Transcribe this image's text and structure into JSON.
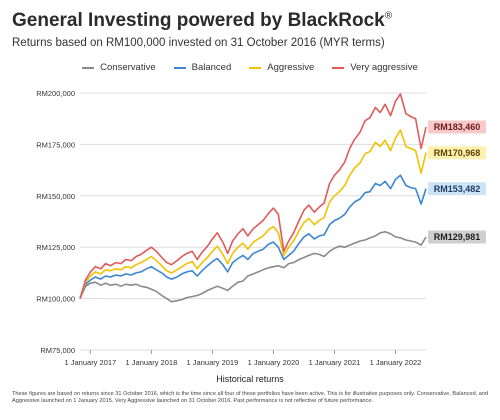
{
  "chart_data": {
    "type": "line",
    "title": "General Investing powered by BlackRock",
    "title_mark": "®",
    "subtitle": "Returns based on RM100,000 invested on 31 October 2016 (MYR terms)",
    "xlabel": "Historical returns",
    "ylim": [
      75000,
      200000
    ],
    "y_ticks": [
      75000,
      100000,
      125000,
      150000,
      175000,
      200000
    ],
    "y_tick_labels": [
      "RM75,000",
      "RM100,000",
      "RM125,000",
      "RM150,000",
      "RM175,000",
      "RM200,000"
    ],
    "x_range": [
      2016.83,
      2022.5
    ],
    "x_ticks": [
      2017,
      2018,
      2019,
      2020,
      2021,
      2022
    ],
    "x_tick_labels": [
      "1 January 2017",
      "1 January 2018",
      "1 January 2019",
      "1 January 2020",
      "1 January 2021",
      "1 January 2022"
    ],
    "grid": "horizontal",
    "legend_position": "top",
    "series": [
      {
        "name": "Conservative",
        "color": "#8a8a8a",
        "end_label": "RM129,981",
        "label_bg": "#cfcfcf",
        "label_text": "#222222",
        "points": [
          [
            2016.83,
            100000
          ],
          [
            2016.92,
            106000
          ],
          [
            2017.0,
            107500
          ],
          [
            2017.08,
            108000
          ],
          [
            2017.17,
            106500
          ],
          [
            2017.25,
            107500
          ],
          [
            2017.33,
            106500
          ],
          [
            2017.42,
            107000
          ],
          [
            2017.5,
            106000
          ],
          [
            2017.58,
            107000
          ],
          [
            2017.67,
            106500
          ],
          [
            2017.75,
            107000
          ],
          [
            2017.83,
            106000
          ],
          [
            2017.92,
            105500
          ],
          [
            2018.0,
            104500
          ],
          [
            2018.08,
            103500
          ],
          [
            2018.17,
            101500
          ],
          [
            2018.25,
            100000
          ],
          [
            2018.33,
            98500
          ],
          [
            2018.42,
            99000
          ],
          [
            2018.5,
            99500
          ],
          [
            2018.58,
            100500
          ],
          [
            2018.67,
            101000
          ],
          [
            2018.75,
            101500
          ],
          [
            2018.83,
            102500
          ],
          [
            2018.92,
            104000
          ],
          [
            2019.0,
            105000
          ],
          [
            2019.08,
            106000
          ],
          [
            2019.17,
            105000
          ],
          [
            2019.25,
            104000
          ],
          [
            2019.33,
            106000
          ],
          [
            2019.42,
            108000
          ],
          [
            2019.5,
            108500
          ],
          [
            2019.58,
            111000
          ],
          [
            2019.67,
            112000
          ],
          [
            2019.75,
            113000
          ],
          [
            2019.83,
            114000
          ],
          [
            2019.92,
            115000
          ],
          [
            2020.0,
            115500
          ],
          [
            2020.08,
            116000
          ],
          [
            2020.17,
            115000
          ],
          [
            2020.25,
            117000
          ],
          [
            2020.33,
            117500
          ],
          [
            2020.42,
            119000
          ],
          [
            2020.5,
            120000
          ],
          [
            2020.58,
            121000
          ],
          [
            2020.67,
            122000
          ],
          [
            2020.75,
            121500
          ],
          [
            2020.83,
            120500
          ],
          [
            2020.92,
            123000
          ],
          [
            2021.0,
            124500
          ],
          [
            2021.08,
            125500
          ],
          [
            2021.17,
            125000
          ],
          [
            2021.25,
            126000
          ],
          [
            2021.33,
            127000
          ],
          [
            2021.42,
            128000
          ],
          [
            2021.5,
            128500
          ],
          [
            2021.58,
            129500
          ],
          [
            2021.67,
            130500
          ],
          [
            2021.75,
            132000
          ],
          [
            2021.83,
            132500
          ],
          [
            2021.92,
            131500
          ],
          [
            2022.0,
            130000
          ],
          [
            2022.08,
            129500
          ],
          [
            2022.17,
            128500
          ],
          [
            2022.25,
            128000
          ],
          [
            2022.33,
            127500
          ],
          [
            2022.42,
            126000
          ],
          [
            2022.5,
            129981
          ]
        ]
      },
      {
        "name": "Balanced",
        "color": "#3a86d1",
        "end_label": "RM153,482",
        "label_bg": "#cfe3f6",
        "label_text": "#1a3d66",
        "points": [
          [
            2016.83,
            100000
          ],
          [
            2016.92,
            107000
          ],
          [
            2017.0,
            109000
          ],
          [
            2017.08,
            110500
          ],
          [
            2017.17,
            109500
          ],
          [
            2017.25,
            111000
          ],
          [
            2017.33,
            110500
          ],
          [
            2017.42,
            111500
          ],
          [
            2017.5,
            111000
          ],
          [
            2017.58,
            112000
          ],
          [
            2017.67,
            111500
          ],
          [
            2017.75,
            112500
          ],
          [
            2017.83,
            113000
          ],
          [
            2017.92,
            114500
          ],
          [
            2018.0,
            115500
          ],
          [
            2018.08,
            114000
          ],
          [
            2018.17,
            112500
          ],
          [
            2018.25,
            110500
          ],
          [
            2018.33,
            109500
          ],
          [
            2018.42,
            110500
          ],
          [
            2018.5,
            112000
          ],
          [
            2018.58,
            113000
          ],
          [
            2018.67,
            113500
          ],
          [
            2018.75,
            111000
          ],
          [
            2018.83,
            113500
          ],
          [
            2018.92,
            116000
          ],
          [
            2019.0,
            118000
          ],
          [
            2019.08,
            119500
          ],
          [
            2019.17,
            116500
          ],
          [
            2019.25,
            113000
          ],
          [
            2019.33,
            117500
          ],
          [
            2019.42,
            119500
          ],
          [
            2019.5,
            121000
          ],
          [
            2019.58,
            119000
          ],
          [
            2019.67,
            122000
          ],
          [
            2019.75,
            123000
          ],
          [
            2019.83,
            124000
          ],
          [
            2019.92,
            126500
          ],
          [
            2020.0,
            127500
          ],
          [
            2020.08,
            125000
          ],
          [
            2020.17,
            119000
          ],
          [
            2020.25,
            121000
          ],
          [
            2020.33,
            123000
          ],
          [
            2020.42,
            127000
          ],
          [
            2020.5,
            130000
          ],
          [
            2020.58,
            131500
          ],
          [
            2020.67,
            129000
          ],
          [
            2020.75,
            130500
          ],
          [
            2020.83,
            131000
          ],
          [
            2020.92,
            136000
          ],
          [
            2021.0,
            138000
          ],
          [
            2021.08,
            139000
          ],
          [
            2021.17,
            141000
          ],
          [
            2021.25,
            144500
          ],
          [
            2021.33,
            147000
          ],
          [
            2021.42,
            148500
          ],
          [
            2021.5,
            151500
          ],
          [
            2021.58,
            152000
          ],
          [
            2021.67,
            156000
          ],
          [
            2021.75,
            155000
          ],
          [
            2021.83,
            157000
          ],
          [
            2021.92,
            153500
          ],
          [
            2022.0,
            158000
          ],
          [
            2022.08,
            160000
          ],
          [
            2022.17,
            155000
          ],
          [
            2022.25,
            154000
          ],
          [
            2022.33,
            153500
          ],
          [
            2022.42,
            146000
          ],
          [
            2022.5,
            153482
          ]
        ]
      },
      {
        "name": "Aggressive",
        "color": "#f2c200",
        "end_label": "RM170,968",
        "label_bg": "#fff0b0",
        "label_text": "#5a4500",
        "points": [
          [
            2016.83,
            100000
          ],
          [
            2016.92,
            108000
          ],
          [
            2017.0,
            111000
          ],
          [
            2017.08,
            113000
          ],
          [
            2017.17,
            112000
          ],
          [
            2017.25,
            114000
          ],
          [
            2017.33,
            113500
          ],
          [
            2017.42,
            114500
          ],
          [
            2017.5,
            114000
          ],
          [
            2017.58,
            115500
          ],
          [
            2017.67,
            115000
          ],
          [
            2017.75,
            116500
          ],
          [
            2017.83,
            117500
          ],
          [
            2017.92,
            119000
          ],
          [
            2018.0,
            120500
          ],
          [
            2018.08,
            118500
          ],
          [
            2018.17,
            116000
          ],
          [
            2018.25,
            113500
          ],
          [
            2018.33,
            112500
          ],
          [
            2018.42,
            114000
          ],
          [
            2018.5,
            115500
          ],
          [
            2018.58,
            117000
          ],
          [
            2018.67,
            118000
          ],
          [
            2018.75,
            114500
          ],
          [
            2018.83,
            117500
          ],
          [
            2018.92,
            120000
          ],
          [
            2019.0,
            123000
          ],
          [
            2019.08,
            125500
          ],
          [
            2019.17,
            121500
          ],
          [
            2019.25,
            117000
          ],
          [
            2019.33,
            122000
          ],
          [
            2019.42,
            125000
          ],
          [
            2019.5,
            127000
          ],
          [
            2019.58,
            124000
          ],
          [
            2019.67,
            127500
          ],
          [
            2019.75,
            129000
          ],
          [
            2019.83,
            130500
          ],
          [
            2019.92,
            133500
          ],
          [
            2020.0,
            135000
          ],
          [
            2020.08,
            132000
          ],
          [
            2020.17,
            121000
          ],
          [
            2020.25,
            125000
          ],
          [
            2020.33,
            128000
          ],
          [
            2020.42,
            133000
          ],
          [
            2020.5,
            137000
          ],
          [
            2020.58,
            139000
          ],
          [
            2020.67,
            136000
          ],
          [
            2020.75,
            138000
          ],
          [
            2020.83,
            139500
          ],
          [
            2020.92,
            147000
          ],
          [
            2021.0,
            150000
          ],
          [
            2021.08,
            152000
          ],
          [
            2021.17,
            155000
          ],
          [
            2021.25,
            160000
          ],
          [
            2021.33,
            163500
          ],
          [
            2021.42,
            166000
          ],
          [
            2021.5,
            170500
          ],
          [
            2021.58,
            171500
          ],
          [
            2021.67,
            176000
          ],
          [
            2021.75,
            174000
          ],
          [
            2021.83,
            177000
          ],
          [
            2021.92,
            172000
          ],
          [
            2022.0,
            178000
          ],
          [
            2022.08,
            182000
          ],
          [
            2022.17,
            174000
          ],
          [
            2022.25,
            173000
          ],
          [
            2022.33,
            172000
          ],
          [
            2022.42,
            161000
          ],
          [
            2022.5,
            170968
          ]
        ]
      },
      {
        "name": "Very aggressive",
        "color": "#e05a5a",
        "end_label": "RM183,460",
        "label_bg": "#f7c9c9",
        "label_text": "#6b1a1a",
        "points": [
          [
            2016.83,
            100000
          ],
          [
            2016.92,
            109000
          ],
          [
            2017.0,
            113000
          ],
          [
            2017.08,
            115500
          ],
          [
            2017.17,
            114500
          ],
          [
            2017.25,
            117000
          ],
          [
            2017.33,
            116000
          ],
          [
            2017.42,
            117500
          ],
          [
            2017.5,
            117000
          ],
          [
            2017.58,
            119000
          ],
          [
            2017.67,
            118500
          ],
          [
            2017.75,
            120500
          ],
          [
            2017.83,
            121500
          ],
          [
            2017.92,
            123500
          ],
          [
            2018.0,
            125000
          ],
          [
            2018.08,
            123000
          ],
          [
            2018.17,
            120000
          ],
          [
            2018.25,
            117500
          ],
          [
            2018.33,
            116500
          ],
          [
            2018.42,
            118500
          ],
          [
            2018.5,
            120500
          ],
          [
            2018.58,
            122000
          ],
          [
            2018.67,
            123000
          ],
          [
            2018.75,
            119000
          ],
          [
            2018.83,
            122500
          ],
          [
            2018.92,
            125500
          ],
          [
            2019.0,
            129000
          ],
          [
            2019.08,
            132000
          ],
          [
            2019.17,
            127500
          ],
          [
            2019.25,
            122000
          ],
          [
            2019.33,
            128000
          ],
          [
            2019.42,
            131500
          ],
          [
            2019.5,
            134000
          ],
          [
            2019.58,
            130500
          ],
          [
            2019.67,
            134000
          ],
          [
            2019.75,
            136000
          ],
          [
            2019.83,
            138000
          ],
          [
            2019.92,
            141500
          ],
          [
            2020.0,
            144000
          ],
          [
            2020.08,
            141000
          ],
          [
            2020.17,
            123000
          ],
          [
            2020.25,
            128000
          ],
          [
            2020.33,
            132000
          ],
          [
            2020.42,
            138000
          ],
          [
            2020.5,
            143000
          ],
          [
            2020.58,
            145500
          ],
          [
            2020.67,
            142000
          ],
          [
            2020.75,
            144500
          ],
          [
            2020.83,
            146500
          ],
          [
            2020.92,
            156000
          ],
          [
            2021.0,
            160000
          ],
          [
            2021.08,
            162500
          ],
          [
            2021.17,
            166500
          ],
          [
            2021.25,
            173000
          ],
          [
            2021.33,
            177500
          ],
          [
            2021.42,
            181000
          ],
          [
            2021.5,
            186500
          ],
          [
            2021.58,
            188000
          ],
          [
            2021.67,
            193000
          ],
          [
            2021.75,
            190500
          ],
          [
            2021.83,
            194500
          ],
          [
            2021.92,
            189000
          ],
          [
            2022.0,
            196000
          ],
          [
            2022.08,
            199500
          ],
          [
            2022.17,
            190000
          ],
          [
            2022.25,
            188500
          ],
          [
            2022.33,
            187500
          ],
          [
            2022.42,
            173000
          ],
          [
            2022.5,
            183460
          ]
        ]
      }
    ]
  },
  "footnote": "These figures are based on returns since 31 October 2016, which is the time since all four of these portfolios have been active. This is for illustrative purposes only. Conservative, Balanced, and Aggressive launched on 1 January 2015. Very Aggressive launched on 31 October 2016. Past performance is not reflective of future performance."
}
